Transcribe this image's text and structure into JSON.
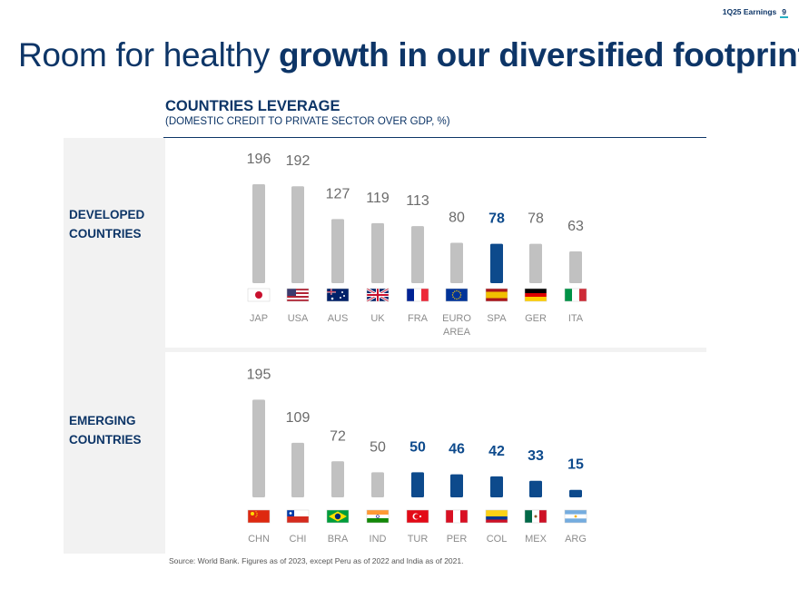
{
  "header": {
    "label": "1Q25 Earnings",
    "page": "9"
  },
  "title": {
    "regular": "Room for healthy ",
    "bold": "growth in our diversified footprint"
  },
  "chart_title": "COUNTRIES LEVERAGE",
  "chart_subtitle": "(DOMESTIC CREDIT TO PRIVATE SECTOR OVER GDP, %)",
  "row_labels": {
    "developed": [
      "DEVELOPED",
      "COUNTRIES"
    ],
    "emerging": [
      "EMERGING",
      "COUNTRIES"
    ]
  },
  "source": "Source: World Bank. Figures as of 2023, except Peru as of 2022 and India as of 2021.",
  "colors": {
    "gray": "#c1c1c1",
    "blue": "#0d4a8c",
    "navy": "#0d3567",
    "label_gray": "#8c8c8c",
    "value_gray": "#6b6b6b"
  },
  "chart_data": [
    {
      "type": "bar",
      "title": "DEVELOPED COUNTRIES",
      "categories": [
        "JAP",
        "USA",
        "AUS",
        "UK",
        "FRA",
        "EURO AREA",
        "SPA",
        "GER",
        "ITA"
      ],
      "values": [
        196,
        192,
        127,
        119,
        113,
        80,
        78,
        78,
        63
      ],
      "highlight": [
        false,
        false,
        false,
        false,
        false,
        false,
        true,
        false,
        false
      ],
      "flag_icons": [
        "japan-flag-icon",
        "usa-flag-icon",
        "australia-flag-icon",
        "uk-flag-icon",
        "france-flag-icon",
        "eu-flag-icon",
        "spain-flag-icon",
        "germany-flag-icon",
        "italy-flag-icon"
      ],
      "ylim": [
        0,
        200
      ]
    },
    {
      "type": "bar",
      "title": "EMERGING COUNTRIES",
      "categories": [
        "CHN",
        "CHI",
        "BRA",
        "IND",
        "TUR",
        "PER",
        "COL",
        "MEX",
        "ARG"
      ],
      "values": [
        195,
        109,
        72,
        50,
        50,
        46,
        42,
        33,
        15
      ],
      "highlight": [
        false,
        false,
        false,
        false,
        true,
        true,
        true,
        true,
        true
      ],
      "flag_icons": [
        "china-flag-icon",
        "chile-flag-icon",
        "brazil-flag-icon",
        "india-flag-icon",
        "turkey-flag-icon",
        "peru-flag-icon",
        "colombia-flag-icon",
        "mexico-flag-icon",
        "argentina-flag-icon"
      ],
      "ylim": [
        0,
        200
      ]
    }
  ]
}
